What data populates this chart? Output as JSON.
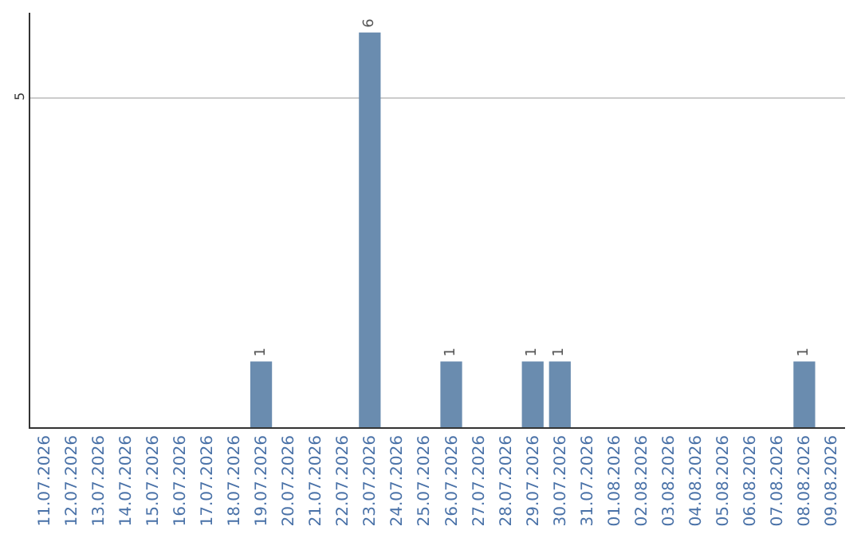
{
  "chart_data": {
    "type": "bar",
    "categories": [
      "11.07.2026",
      "12.07.2026",
      "13.07.2026",
      "14.07.2026",
      "15.07.2026",
      "16.07.2026",
      "17.07.2026",
      "18.07.2026",
      "19.07.2026",
      "20.07.2026",
      "21.07.2026",
      "22.07.2026",
      "23.07.2026",
      "24.07.2026",
      "25.07.2026",
      "26.07.2026",
      "27.07.2026",
      "28.07.2026",
      "29.07.2026",
      "30.07.2026",
      "31.07.2026",
      "01.08.2026",
      "02.08.2026",
      "03.08.2026",
      "04.08.2026",
      "05.08.2026",
      "06.08.2026",
      "07.08.2026",
      "08.08.2026",
      "09.08.2026"
    ],
    "values": [
      0,
      0,
      0,
      0,
      0,
      0,
      0,
      0,
      1,
      0,
      0,
      0,
      6,
      0,
      0,
      1,
      0,
      0,
      1,
      1,
      0,
      0,
      0,
      0,
      0,
      0,
      0,
      0,
      1,
      0
    ],
    "value_labels": [
      null,
      null,
      null,
      null,
      null,
      null,
      null,
      null,
      "1",
      null,
      null,
      null,
      "6",
      null,
      null,
      "1",
      null,
      null,
      "1",
      "1",
      null,
      null,
      null,
      null,
      null,
      null,
      null,
      null,
      "1",
      null
    ],
    "color": "#6a8caf",
    "ylim": [
      0,
      6.3
    ],
    "yticks": [
      5
    ],
    "grid": "y",
    "legend": false
  }
}
